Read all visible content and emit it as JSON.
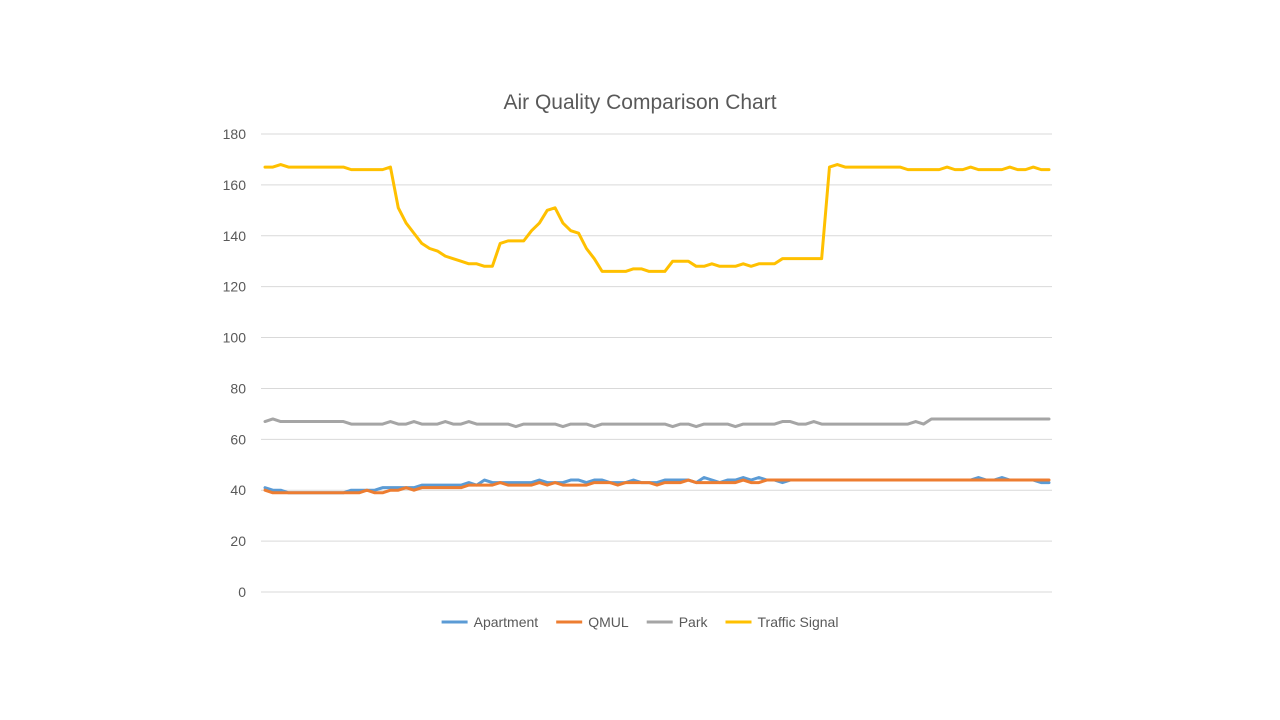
{
  "chart_data": {
    "type": "line",
    "title": "Air Quality Comparison Chart",
    "xlabel": "",
    "ylabel": "",
    "ylim": [
      0,
      180
    ],
    "yticks": [
      0,
      20,
      40,
      60,
      80,
      100,
      120,
      140,
      160,
      180
    ],
    "grid": true,
    "legend_position": "bottom",
    "n_points": 101,
    "series": [
      {
        "name": "Apartment",
        "color": "#5B9BD5",
        "values": [
          41,
          40,
          40,
          39,
          39,
          39,
          39,
          39,
          39,
          39,
          39,
          40,
          40,
          40,
          40,
          41,
          41,
          41,
          41,
          41,
          42,
          42,
          42,
          42,
          42,
          42,
          43,
          42,
          44,
          43,
          43,
          43,
          43,
          43,
          43,
          44,
          43,
          43,
          43,
          44,
          44,
          43,
          44,
          44,
          43,
          43,
          43,
          44,
          43,
          43,
          43,
          44,
          44,
          44,
          44,
          43,
          45,
          44,
          43,
          44,
          44,
          45,
          44,
          45,
          44,
          44,
          43,
          44,
          44,
          44,
          44,
          44,
          44,
          44,
          44,
          44,
          44,
          44,
          44,
          44,
          44,
          44,
          44,
          44,
          44,
          44,
          44,
          44,
          44,
          44,
          44,
          45,
          44,
          44,
          45,
          44,
          44,
          44,
          44,
          43,
          43
        ]
      },
      {
        "name": "QMUL",
        "color": "#ED7D31",
        "values": [
          40,
          39,
          39,
          39,
          39,
          39,
          39,
          39,
          39,
          39,
          39,
          39,
          39,
          40,
          39,
          39,
          40,
          40,
          41,
          40,
          41,
          41,
          41,
          41,
          41,
          41,
          42,
          42,
          42,
          42,
          43,
          42,
          42,
          42,
          42,
          43,
          42,
          43,
          42,
          42,
          42,
          42,
          43,
          43,
          43,
          42,
          43,
          43,
          43,
          43,
          42,
          43,
          43,
          43,
          44,
          43,
          43,
          43,
          43,
          43,
          43,
          44,
          43,
          43,
          44,
          44,
          44,
          44,
          44,
          44,
          44,
          44,
          44,
          44,
          44,
          44,
          44,
          44,
          44,
          44,
          44,
          44,
          44,
          44,
          44,
          44,
          44,
          44,
          44,
          44,
          44,
          44,
          44,
          44,
          44,
          44,
          44,
          44,
          44,
          44,
          44
        ]
      },
      {
        "name": "Park",
        "color": "#A5A5A5",
        "values": [
          67,
          68,
          67,
          67,
          67,
          67,
          67,
          67,
          67,
          67,
          67,
          66,
          66,
          66,
          66,
          66,
          67,
          66,
          66,
          67,
          66,
          66,
          66,
          67,
          66,
          66,
          67,
          66,
          66,
          66,
          66,
          66,
          65,
          66,
          66,
          66,
          66,
          66,
          65,
          66,
          66,
          66,
          65,
          66,
          66,
          66,
          66,
          66,
          66,
          66,
          66,
          66,
          65,
          66,
          66,
          65,
          66,
          66,
          66,
          66,
          65,
          66,
          66,
          66,
          66,
          66,
          67,
          67,
          66,
          66,
          67,
          66,
          66,
          66,
          66,
          66,
          66,
          66,
          66,
          66,
          66,
          66,
          66,
          67,
          66,
          68,
          68,
          68,
          68,
          68,
          68,
          68,
          68,
          68,
          68,
          68,
          68,
          68,
          68,
          68,
          68
        ]
      },
      {
        "name": "Traffic Signal",
        "color": "#FFC000",
        "values": [
          167,
          167,
          168,
          167,
          167,
          167,
          167,
          167,
          167,
          167,
          167,
          166,
          166,
          166,
          166,
          166,
          167,
          151,
          145,
          141,
          137,
          135,
          134,
          132,
          131,
          130,
          129,
          129,
          128,
          128,
          137,
          138,
          138,
          138,
          142,
          145,
          150,
          151,
          145,
          142,
          141,
          135,
          131,
          126,
          126,
          126,
          126,
          127,
          127,
          126,
          126,
          126,
          130,
          130,
          130,
          128,
          128,
          129,
          128,
          128,
          128,
          129,
          128,
          129,
          129,
          129,
          131,
          131,
          131,
          131,
          131,
          131,
          167,
          168,
          167,
          167,
          167,
          167,
          167,
          167,
          167,
          167,
          166,
          166,
          166,
          166,
          166,
          167,
          166,
          166,
          167,
          166,
          166,
          166,
          166,
          167,
          166,
          166,
          167,
          166,
          166
        ]
      }
    ]
  }
}
